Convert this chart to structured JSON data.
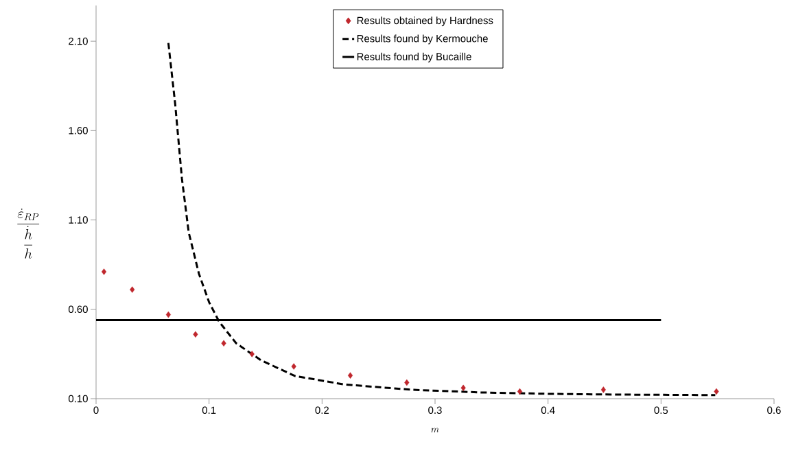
{
  "chart_data": {
    "type": "scatter",
    "xlabel": "m",
    "ylabel": "\\frac{\\dot{\\varepsilon}_{RP}}{\\dfrac{\\dot{h}}{h}}",
    "xlim": [
      0,
      0.6
    ],
    "xticks": [
      0,
      0.1,
      0.2,
      0.3,
      0.4,
      0.5,
      0.6
    ],
    "ylim": [
      0.1,
      2.3
    ],
    "yticks": [
      {
        "value": 0.1,
        "label": "0.10"
      },
      {
        "value": 0.6,
        "label": "0.60"
      },
      {
        "value": 1.1,
        "label": "1.10"
      },
      {
        "value": 1.6,
        "label": "1.60"
      },
      {
        "value": 2.1,
        "label": "2.10"
      }
    ],
    "grid": false,
    "legend": "top",
    "series": [
      {
        "name": "Results obtained by Hardness",
        "marker": "diamond",
        "color": "#c0272d",
        "x": [
          0.007,
          0.032,
          0.064,
          0.088,
          0.113,
          0.138,
          0.175,
          0.225,
          0.275,
          0.325,
          0.375,
          0.449,
          0.549
        ],
        "values": [
          0.81,
          0.71,
          0.57,
          0.46,
          0.41,
          0.35,
          0.28,
          0.23,
          0.19,
          0.16,
          0.14,
          0.15,
          0.14
        ]
      },
      {
        "name": "Results found by Kermouche",
        "type": "line",
        "line_style": "dashed",
        "marker": "none",
        "color": "#000000",
        "x": [
          0.064,
          0.07,
          0.076,
          0.082,
          0.091,
          0.1,
          0.109,
          0.124,
          0.146,
          0.176,
          0.219,
          0.279,
          0.34,
          0.4,
          0.461,
          0.548
        ],
        "values": [
          2.09,
          1.75,
          1.33,
          1.03,
          0.8,
          0.64,
          0.53,
          0.41,
          0.315,
          0.227,
          0.18,
          0.15,
          0.135,
          0.127,
          0.123,
          0.12
        ]
      },
      {
        "name": "Results found by Bucaille",
        "type": "line",
        "line_style": "solid",
        "marker": "none",
        "color": "#000000",
        "x": [
          0,
          0.5
        ],
        "values": [
          0.54,
          0.54
        ]
      }
    ]
  }
}
